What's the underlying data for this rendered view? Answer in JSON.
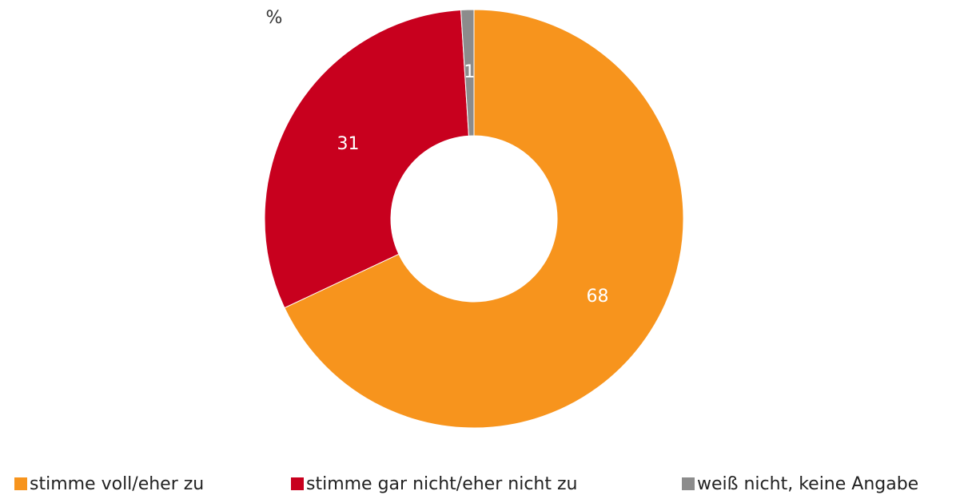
{
  "chart_data": {
    "type": "donut",
    "unit_label": "%",
    "categories": [
      "stimme voll/eher zu",
      "stimme gar nicht/eher nicht zu",
      "weiß nicht, keine Angabe"
    ],
    "values": [
      68,
      31,
      1
    ],
    "colors": [
      "#f7941d",
      "#c8001e",
      "#8c8c8c"
    ],
    "legend": "bottom"
  }
}
